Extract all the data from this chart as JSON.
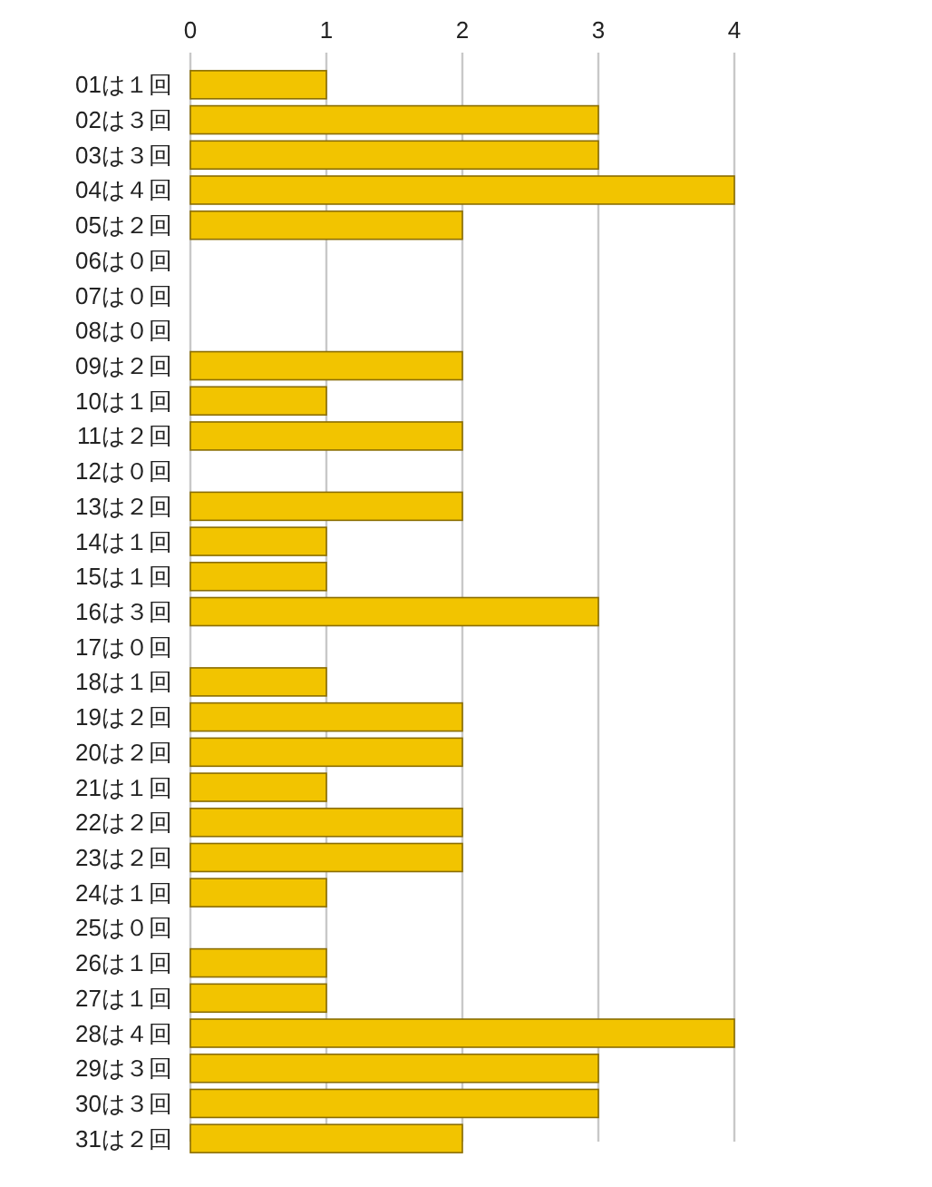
{
  "chart_data": {
    "type": "bar",
    "orientation": "horizontal",
    "categories": [
      "01は１回",
      "02は３回",
      "03は３回",
      "04は４回",
      "05は２回",
      "06は０回",
      "07は０回",
      "08は０回",
      "09は２回",
      "10は１回",
      "11は２回",
      "12は０回",
      "13は２回",
      "14は１回",
      "15は１回",
      "16は３回",
      "17は０回",
      "18は１回",
      "19は２回",
      "20は２回",
      "21は１回",
      "22は２回",
      "23は２回",
      "24は１回",
      "25は０回",
      "26は１回",
      "27は１回",
      "28は４回",
      "29は３回",
      "30は３回",
      "31は２回"
    ],
    "values": [
      1,
      3,
      3,
      4,
      2,
      0,
      0,
      0,
      2,
      1,
      2,
      0,
      2,
      1,
      1,
      3,
      0,
      1,
      2,
      2,
      1,
      2,
      2,
      1,
      0,
      1,
      1,
      4,
      3,
      3,
      2
    ],
    "color": "#f2c400",
    "xlim": [
      0,
      4
    ],
    "xticks": [
      0,
      1,
      2,
      3,
      4
    ],
    "grid": "x"
  }
}
